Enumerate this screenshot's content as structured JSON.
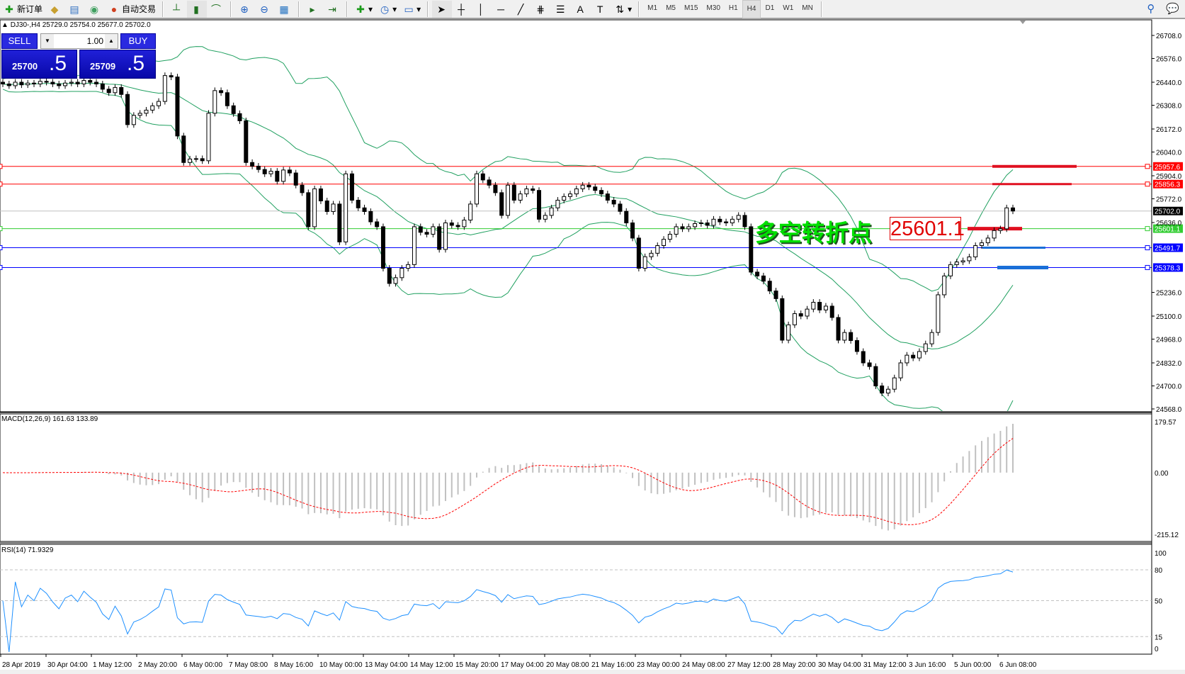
{
  "toolbar": {
    "new_order_label": "新订单",
    "auto_trading_label": "自动交易",
    "icons": [
      "new-order-icon",
      "market-watch-icon",
      "navigator-icon",
      "signals-icon",
      "auto-trading-icon",
      "bar-chart-icon",
      "candlestick-icon",
      "line-chart-icon",
      "zoom-in-icon",
      "zoom-out-icon",
      "tile-windows-icon",
      "auto-scroll-icon",
      "chart-shift-icon",
      "indicators-icon",
      "periods-icon",
      "templates-icon",
      "cursor-icon",
      "crosshair-icon",
      "vertical-line-icon",
      "horizontal-line-icon",
      "trendline-icon",
      "fibo-channel-icon",
      "fibo-retracement-icon",
      "text-icon",
      "text-label-icon",
      "arrows-icon",
      "search-icon",
      "chat-icon"
    ],
    "timeframes": [
      "M1",
      "M5",
      "M15",
      "M30",
      "H1",
      "H4",
      "D1",
      "W1",
      "MN"
    ],
    "active_timeframe": "H4"
  },
  "header": {
    "symbol": "DJ30-,H4",
    "ohlc": "25729.0 25754.0 25677.0 25702.0"
  },
  "trade_panel": {
    "sell_label": "SELL",
    "buy_label": "BUY",
    "lot": "1.00",
    "sell_price_main": "25700",
    "sell_price_frac": ".5",
    "buy_price_main": "25709",
    "buy_price_frac": ".5"
  },
  "annotations": {
    "pivot_text": "多空转折点",
    "pivot_value": "25601.1"
  },
  "colors": {
    "bull_body": "#ffffff",
    "bear_body": "#000000",
    "bands": "#20a060",
    "macd_hist": "#c0c0c0",
    "macd_signal": "#ff0000",
    "rsi": "#1e90ff",
    "resistance": "#ff0000",
    "pivot": "#32cd32",
    "support": "#0000ff",
    "bid": "#c0c0c0"
  },
  "chart_data": {
    "type": "candlestick",
    "symbol": "DJ30-",
    "timeframe": "H4",
    "price_ylim": [
      24568.0,
      26708.0
    ],
    "price_ticks": [
      "26708.0",
      "26576.0",
      "26440.0",
      "26308.0",
      "26172.0",
      "26040.0",
      "25904.0",
      "25772.0",
      "25636.0",
      "25236.0",
      "25100.0",
      "24968.0",
      "24832.0",
      "24700.0",
      "24568.0"
    ],
    "x_tick_labels": [
      "28 Apr 2019",
      "30 Apr 04:00",
      "1 May 12:00",
      "2 May 20:00",
      "6 May 00:00",
      "7 May 08:00",
      "8 May 16:00",
      "10 May 00:00",
      "13 May 04:00",
      "14 May 12:00",
      "15 May 20:00",
      "17 May 04:00",
      "20 May 08:00",
      "21 May 16:00",
      "23 May 00:00",
      "24 May 08:00",
      "27 May 12:00",
      "28 May 20:00",
      "30 May 04:00",
      "31 May 12:00",
      "3 Jun 16:00",
      "5 Jun 00:00",
      "6 Jun 08:00"
    ],
    "close": [
      26430,
      26420,
      26440,
      26425,
      26435,
      26430,
      26445,
      26440,
      26430,
      26420,
      26435,
      26440,
      26430,
      26450,
      26440,
      26430,
      26400,
      26380,
      26410,
      26370,
      26197,
      26250,
      26262,
      26280,
      26305,
      26330,
      26478,
      26470,
      26132,
      25980,
      26000,
      26002,
      25990,
      26262,
      26392,
      26380,
      26305,
      26260,
      26219,
      25980,
      25959,
      25940,
      25915,
      25930,
      25872,
      25937,
      25920,
      25850,
      25807,
      25612,
      25829,
      25760,
      25699,
      25742,
      25525,
      25915,
      25764,
      25720,
      25699,
      25640,
      25612,
      25374,
      25287,
      25320,
      25374,
      25395,
      25612,
      25580,
      25569,
      25612,
      25482,
      25634,
      25620,
      25612,
      25650,
      25742,
      25915,
      25880,
      25850,
      25807,
      25677,
      25850,
      25764,
      25800,
      25829,
      25820,
      25655,
      25677,
      25720,
      25764,
      25785,
      25800,
      25829,
      25850,
      25840,
      25820,
      25800,
      25764,
      25742,
      25700,
      25634,
      25547,
      25374,
      25440,
      25460,
      25504,
      25540,
      25569,
      25612,
      25600,
      25612,
      25630,
      25634,
      25620,
      25655,
      25640,
      25634,
      25655,
      25677,
      25612,
      25352,
      25330,
      25300,
      25244,
      25200,
      24962,
      25050,
      25114,
      25100,
      25140,
      25179,
      25135,
      25157,
      25092,
      24962,
      25006,
      24960,
      24897,
      24832,
      24811,
      24700,
      24659,
      24681,
      24746,
      24832,
      24876,
      24860,
      24897,
      24941,
      25006,
      25222,
      25330,
      25395,
      25410,
      25417,
      25439,
      25504,
      25520,
      25547,
      25590,
      25600,
      25720,
      25702
    ],
    "horizontal_lines": [
      {
        "price": 25957.6,
        "label": "25957.6",
        "color": "#ff0000"
      },
      {
        "price": 25856.3,
        "label": "25856.3",
        "color": "#ff0000"
      },
      {
        "price": 25702.0,
        "label": "25702.0",
        "color": "#c0c0c0"
      },
      {
        "price": 25601.1,
        "label": "25601.1",
        "color": "#32cd32"
      },
      {
        "price": 25491.7,
        "label": "25491.7",
        "color": "#0000ff"
      },
      {
        "price": 25378.3,
        "label": "25378.3",
        "color": "#0000ff"
      }
    ],
    "bollinger": {
      "period": 20,
      "deviation": 2
    },
    "macd": {
      "label": "MACD(12,26,9) 161.63 133.89",
      "ylim": [
        -215.12,
        179.57
      ],
      "ticks": [
        "179.57",
        "0.00",
        "-215.12"
      ]
    },
    "rsi": {
      "label": "RSI(14) 71.9329",
      "ylim": [
        0,
        100
      ],
      "levels": [
        80,
        50,
        15
      ],
      "ticks": [
        "100",
        "80",
        "50",
        "15",
        "0"
      ]
    }
  }
}
